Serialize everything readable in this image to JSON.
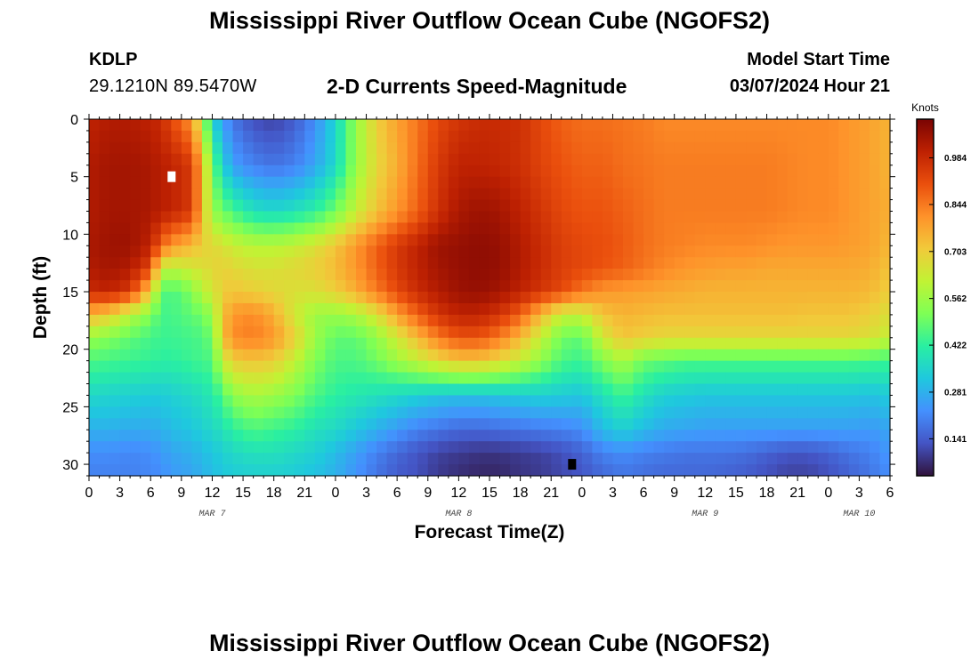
{
  "header": {
    "title": "Mississippi River Outflow Ocean Cube (NGOFS2)",
    "station": "KDLP",
    "coordinates": "29.1210N  89.5470W",
    "subtitle": "2-D Currents Speed-Magnitude",
    "model_start_label": "Model Start Time",
    "model_start_value": "03/07/2024 Hour 21"
  },
  "footer": {
    "title": "Mississippi River Outflow Ocean Cube (NGOFS2)"
  },
  "chart_data": {
    "type": "heatmap",
    "xlabel": "Forecast Time(Z)",
    "ylabel": "Depth (ft)",
    "x_ticks": [
      "0",
      "3",
      "6",
      "9",
      "12",
      "15",
      "18",
      "21",
      "0",
      "3",
      "6",
      "9",
      "12",
      "15",
      "18",
      "21",
      "0",
      "3",
      "6",
      "9",
      "12",
      "15",
      "18",
      "21",
      "0",
      "3",
      "6"
    ],
    "x_range_hours": [
      0,
      78
    ],
    "date_labels": [
      {
        "label": "MAR 7",
        "hour": 12
      },
      {
        "label": "MAR 8",
        "hour": 36
      },
      {
        "label": "MAR 9",
        "hour": 60
      },
      {
        "label": "MAR 10",
        "hour": 75
      }
    ],
    "y_ticks": [
      0,
      5,
      10,
      15,
      20,
      25,
      30
    ],
    "ylim": [
      0,
      31
    ],
    "colorbar": {
      "label": "Knots",
      "ticks": [
        0.141,
        0.281,
        0.422,
        0.562,
        0.703,
        0.844,
        0.984
      ],
      "range": [
        0.03,
        1.1
      ],
      "colors": [
        "#30123b",
        "#4454c4",
        "#4490fe",
        "#1fc8de",
        "#29efa2",
        "#7eff55",
        "#c1f334",
        "#f1ca3a",
        "#fe922a",
        "#ea4f0d",
        "#be2102",
        "#7a0403"
      ]
    },
    "markers": [
      {
        "name": "max-marker",
        "color": "#ffffff",
        "hour": 8,
        "depth": 5
      },
      {
        "name": "min-marker",
        "color": "#000000",
        "hour": 47,
        "depth": 30
      }
    ],
    "speed_grid_hours": [
      0,
      2,
      4,
      6,
      7,
      8,
      10,
      11,
      12,
      13,
      14,
      16,
      18,
      20,
      22,
      24,
      26,
      28,
      30,
      32,
      34,
      36,
      38,
      40,
      42,
      44,
      46,
      48,
      50,
      52,
      54,
      56,
      58,
      60,
      62,
      64,
      66,
      68,
      70,
      72,
      74,
      76,
      78
    ],
    "speed_grid_depths": [
      0,
      4,
      8,
      11,
      13,
      15,
      17,
      19,
      21,
      24,
      27,
      29,
      31
    ],
    "speed_grid_knots": [
      [
        1.0,
        1.02,
        1.02,
        1.0,
        0.98,
        0.92,
        0.8,
        0.6,
        0.35,
        0.25,
        0.18,
        0.12,
        0.1,
        0.14,
        0.22,
        0.35,
        0.55,
        0.7,
        0.78,
        0.85,
        0.92,
        0.96,
        0.98,
        0.98,
        0.97,
        0.92,
        0.88,
        0.86,
        0.86,
        0.85,
        0.84,
        0.82,
        0.82,
        0.82,
        0.82,
        0.82,
        0.82,
        0.82,
        0.82,
        0.82,
        0.8,
        0.78,
        0.75
      ],
      [
        1.02,
        1.04,
        1.04,
        1.03,
        1.01,
        1.0,
        0.95,
        0.75,
        0.5,
        0.35,
        0.25,
        0.2,
        0.18,
        0.2,
        0.26,
        0.36,
        0.55,
        0.68,
        0.76,
        0.86,
        0.95,
        1.0,
        1.0,
        0.99,
        0.97,
        0.93,
        0.9,
        0.88,
        0.88,
        0.86,
        0.85,
        0.84,
        0.84,
        0.84,
        0.84,
        0.84,
        0.84,
        0.83,
        0.82,
        0.82,
        0.8,
        0.78,
        0.75
      ],
      [
        1.02,
        1.04,
        1.04,
        1.03,
        1.01,
        1.0,
        0.95,
        0.75,
        0.55,
        0.5,
        0.45,
        0.38,
        0.36,
        0.38,
        0.42,
        0.5,
        0.62,
        0.72,
        0.8,
        0.88,
        0.97,
        1.03,
        1.05,
        1.04,
        1.0,
        0.96,
        0.92,
        0.9,
        0.9,
        0.88,
        0.86,
        0.84,
        0.84,
        0.84,
        0.84,
        0.84,
        0.84,
        0.83,
        0.82,
        0.82,
        0.8,
        0.78,
        0.76
      ],
      [
        1.03,
        1.05,
        1.05,
        1.0,
        0.88,
        0.8,
        0.74,
        0.7,
        0.68,
        0.66,
        0.63,
        0.6,
        0.6,
        0.62,
        0.66,
        0.72,
        0.8,
        0.88,
        0.95,
        1.0,
        1.05,
        1.06,
        1.07,
        1.06,
        1.02,
        0.98,
        0.94,
        0.92,
        0.91,
        0.89,
        0.86,
        0.84,
        0.83,
        0.82,
        0.82,
        0.82,
        0.81,
        0.8,
        0.8,
        0.8,
        0.79,
        0.78,
        0.74
      ],
      [
        1.02,
        1.04,
        1.02,
        0.92,
        0.62,
        0.6,
        0.64,
        0.66,
        0.68,
        0.7,
        0.68,
        0.66,
        0.66,
        0.68,
        0.7,
        0.74,
        0.8,
        0.88,
        0.95,
        1.0,
        1.04,
        1.06,
        1.07,
        1.06,
        1.02,
        0.98,
        0.94,
        0.92,
        0.9,
        0.88,
        0.85,
        0.82,
        0.8,
        0.79,
        0.78,
        0.78,
        0.77,
        0.77,
        0.77,
        0.77,
        0.77,
        0.76,
        0.72
      ],
      [
        0.98,
        1.0,
        0.95,
        0.7,
        0.48,
        0.45,
        0.52,
        0.6,
        0.64,
        0.7,
        0.72,
        0.7,
        0.68,
        0.66,
        0.66,
        0.7,
        0.76,
        0.84,
        0.92,
        0.98,
        1.02,
        1.05,
        1.06,
        1.04,
        1.0,
        0.96,
        0.92,
        0.85,
        0.8,
        0.79,
        0.78,
        0.77,
        0.76,
        0.75,
        0.75,
        0.75,
        0.75,
        0.75,
        0.75,
        0.75,
        0.75,
        0.74,
        0.7
      ],
      [
        0.75,
        0.7,
        0.6,
        0.52,
        0.45,
        0.45,
        0.48,
        0.5,
        0.55,
        0.72,
        0.8,
        0.82,
        0.76,
        0.64,
        0.56,
        0.55,
        0.58,
        0.66,
        0.78,
        0.88,
        0.96,
        1.0,
        1.0,
        0.96,
        0.88,
        0.74,
        0.62,
        0.62,
        0.72,
        0.75,
        0.74,
        0.73,
        0.73,
        0.73,
        0.73,
        0.73,
        0.73,
        0.73,
        0.72,
        0.72,
        0.72,
        0.7,
        0.66
      ],
      [
        0.55,
        0.52,
        0.48,
        0.45,
        0.44,
        0.44,
        0.45,
        0.46,
        0.5,
        0.72,
        0.82,
        0.84,
        0.8,
        0.7,
        0.56,
        0.48,
        0.48,
        0.54,
        0.64,
        0.74,
        0.84,
        0.9,
        0.9,
        0.84,
        0.74,
        0.62,
        0.5,
        0.48,
        0.64,
        0.72,
        0.7,
        0.68,
        0.68,
        0.68,
        0.68,
        0.68,
        0.68,
        0.68,
        0.68,
        0.68,
        0.68,
        0.66,
        0.62
      ],
      [
        0.46,
        0.45,
        0.44,
        0.43,
        0.42,
        0.42,
        0.44,
        0.45,
        0.46,
        0.62,
        0.7,
        0.72,
        0.7,
        0.62,
        0.52,
        0.46,
        0.46,
        0.5,
        0.56,
        0.62,
        0.68,
        0.72,
        0.72,
        0.68,
        0.62,
        0.54,
        0.46,
        0.44,
        0.52,
        0.58,
        0.5,
        0.48,
        0.46,
        0.46,
        0.46,
        0.46,
        0.46,
        0.46,
        0.46,
        0.46,
        0.46,
        0.45,
        0.44
      ],
      [
        0.36,
        0.35,
        0.34,
        0.33,
        0.33,
        0.34,
        0.36,
        0.38,
        0.4,
        0.46,
        0.54,
        0.58,
        0.56,
        0.52,
        0.46,
        0.42,
        0.4,
        0.38,
        0.36,
        0.34,
        0.32,
        0.31,
        0.31,
        0.32,
        0.33,
        0.34,
        0.33,
        0.32,
        0.38,
        0.44,
        0.38,
        0.34,
        0.33,
        0.32,
        0.32,
        0.32,
        0.32,
        0.32,
        0.32,
        0.32,
        0.32,
        0.31,
        0.33
      ],
      [
        0.28,
        0.28,
        0.27,
        0.27,
        0.28,
        0.3,
        0.32,
        0.34,
        0.36,
        0.38,
        0.42,
        0.46,
        0.44,
        0.42,
        0.38,
        0.36,
        0.32,
        0.28,
        0.24,
        0.2,
        0.18,
        0.16,
        0.16,
        0.17,
        0.18,
        0.19,
        0.2,
        0.22,
        0.3,
        0.34,
        0.3,
        0.27,
        0.26,
        0.25,
        0.25,
        0.25,
        0.25,
        0.25,
        0.25,
        0.25,
        0.25,
        0.24,
        0.26
      ],
      [
        0.22,
        0.22,
        0.21,
        0.22,
        0.24,
        0.26,
        0.28,
        0.3,
        0.32,
        0.34,
        0.36,
        0.38,
        0.38,
        0.36,
        0.34,
        0.3,
        0.25,
        0.2,
        0.16,
        0.13,
        0.1,
        0.09,
        0.08,
        0.08,
        0.09,
        0.1,
        0.12,
        0.15,
        0.2,
        0.22,
        0.2,
        0.19,
        0.18,
        0.18,
        0.18,
        0.17,
        0.15,
        0.13,
        0.13,
        0.15,
        0.18,
        0.2,
        0.24
      ],
      [
        0.2,
        0.2,
        0.2,
        0.21,
        0.22,
        0.24,
        0.26,
        0.28,
        0.3,
        0.32,
        0.33,
        0.34,
        0.34,
        0.33,
        0.31,
        0.28,
        0.23,
        0.18,
        0.14,
        0.12,
        0.09,
        0.07,
        0.06,
        0.06,
        0.08,
        0.09,
        0.11,
        0.13,
        0.16,
        0.18,
        0.17,
        0.16,
        0.16,
        0.16,
        0.15,
        0.14,
        0.12,
        0.1,
        0.1,
        0.12,
        0.15,
        0.18,
        0.22
      ]
    ]
  }
}
